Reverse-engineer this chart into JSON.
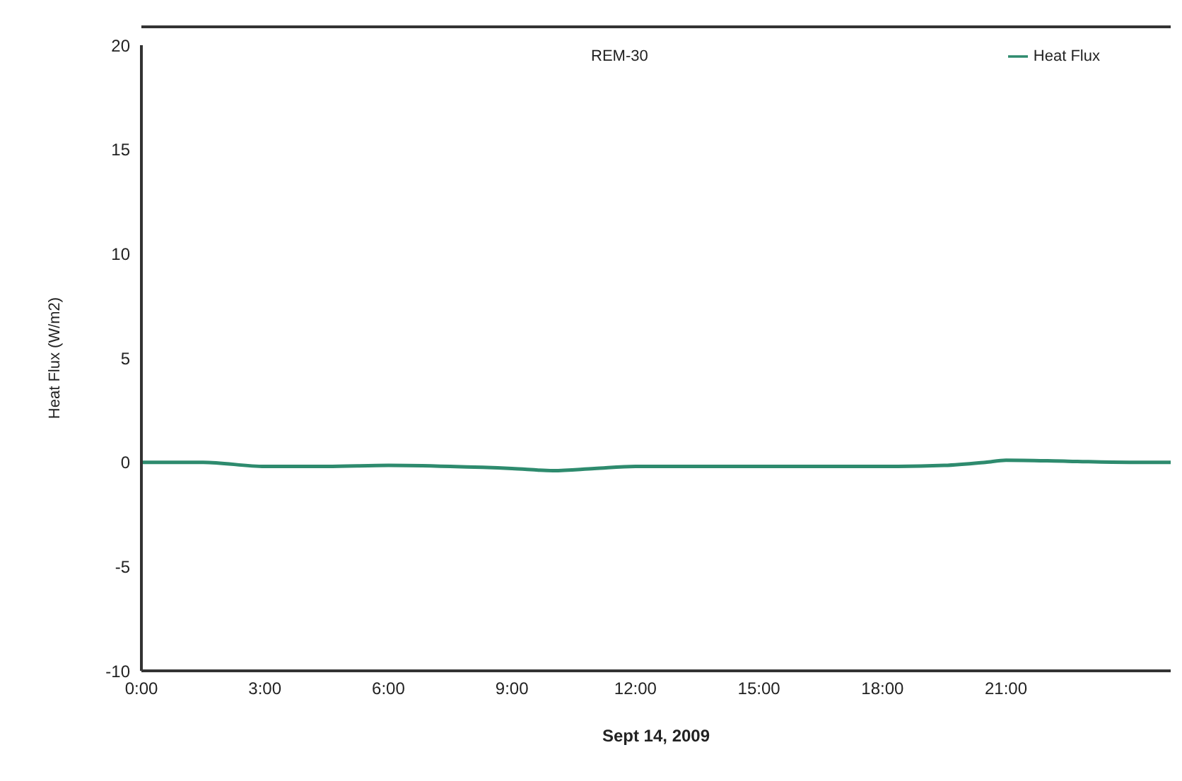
{
  "chart_data": {
    "type": "line",
    "title": "REM-30",
    "xlabel": "Sept 14, 2009",
    "ylabel": "Heat Flux (W/m2)",
    "x": [
      0,
      1.5,
      3,
      4.5,
      6,
      7.5,
      9,
      10,
      11,
      12,
      13.5,
      15,
      16.5,
      18,
      19.5,
      20.5,
      21,
      22.5,
      24,
      25
    ],
    "series": [
      {
        "name": "Heat Flux",
        "color": "#2e8b6e",
        "values": [
          0,
          0,
          -0.2,
          -0.2,
          -0.15,
          -0.2,
          -0.3,
          -0.4,
          -0.3,
          -0.2,
          -0.2,
          -0.2,
          -0.2,
          -0.2,
          -0.15,
          0,
          0.1,
          0.05,
          0,
          0
        ]
      }
    ],
    "xlim": [
      0,
      25
    ],
    "xticks": [
      {
        "value": 0,
        "label": "0:00"
      },
      {
        "value": 3,
        "label": "3:00"
      },
      {
        "value": 6,
        "label": "6:00"
      },
      {
        "value": 9,
        "label": "9:00"
      },
      {
        "value": 12,
        "label": "12:00"
      },
      {
        "value": 15,
        "label": "15:00"
      },
      {
        "value": 18,
        "label": "18:00"
      },
      {
        "value": 21,
        "label": "21:00"
      }
    ],
    "ylim": [
      -10,
      20
    ],
    "yticks": [
      -10,
      -5,
      0,
      5,
      10,
      15,
      20
    ],
    "grid": false,
    "legend": "top right",
    "marker": "none",
    "line_style": "solid"
  }
}
